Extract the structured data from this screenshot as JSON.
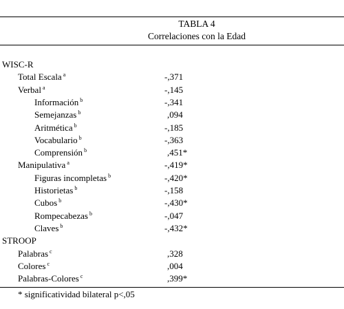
{
  "table": {
    "number": "TABLA 4",
    "caption": "Correlaciones con la Edad",
    "rows": [
      {
        "label": "WISC-R",
        "sup": "",
        "value": "",
        "level": 0
      },
      {
        "label": "Total Escala",
        "sup": "a",
        "value": "-,371",
        "level": 1
      },
      {
        "label": "Verbal",
        "sup": "a",
        "value": "-,145",
        "level": 1
      },
      {
        "label": "Información",
        "sup": "b",
        "value": "-,341",
        "level": 2
      },
      {
        "label": "Semejanzas",
        "sup": "b",
        "value": ",094",
        "level": 2
      },
      {
        "label": "Aritmética",
        "sup": "b",
        "value": "-,185",
        "level": 2
      },
      {
        "label": "Vocabulario",
        "sup": "b",
        "value": "-,363",
        "level": 2
      },
      {
        "label": "Comprensión",
        "sup": "b",
        "value": ",451*",
        "level": 2
      },
      {
        "label": "Manipulativa",
        "sup": "a",
        "value": "-,419*",
        "level": 1
      },
      {
        "label": "Figuras incompletas",
        "sup": "b",
        "value": "-,420*",
        "level": 2
      },
      {
        "label": "Historietas",
        "sup": "b",
        "value": "-,158",
        "level": 2
      },
      {
        "label": "Cubos",
        "sup": "b",
        "value": "-,430*",
        "level": 2
      },
      {
        "label": "Rompecabezas",
        "sup": "b",
        "value": "-,047",
        "level": 2
      },
      {
        "label": "Claves",
        "sup": "b",
        "value": "-,432*",
        "level": 2
      },
      {
        "label": "STROOP",
        "sup": "",
        "value": "",
        "level": 0
      },
      {
        "label": "Palabras",
        "sup": "c",
        "value": ",328",
        "level": 1
      },
      {
        "label": "Colores",
        "sup": "c",
        "value": ",004",
        "level": 1
      },
      {
        "label": "Palabras-Colores",
        "sup": "c",
        "value": ",399*",
        "level": 1
      }
    ],
    "footnote": "* significatividad bilateral p<,05"
  }
}
